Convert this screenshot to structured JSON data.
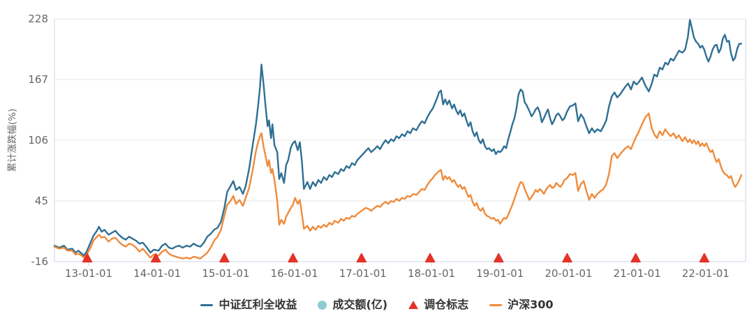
{
  "colors": {
    "dividend_line": "#2f6f93",
    "hs300_line": "#ef8b3b",
    "rebalance_marker": "#e43229",
    "volume_marker": "#8fcbd4",
    "grid_line": "#e6e6e6",
    "axis_line": "#ccd6eb",
    "axis_label": "#666666",
    "legend_text": "#333333",
    "background": "#ffffff"
  },
  "legend": {
    "items": [
      {
        "label": "中证红利全收益",
        "marker": "line",
        "color": "#2f6f93"
      },
      {
        "label": "成交额(亿)",
        "marker": "circle",
        "color": "#8fcbd4"
      },
      {
        "label": "调仓标志",
        "marker": "triangle",
        "color": "#e43229"
      },
      {
        "label": "沪深300",
        "marker": "line",
        "color": "#ef8b3b"
      }
    ]
  },
  "chart_data": {
    "type": "line",
    "title": "",
    "xlabel": "",
    "ylabel": "累计涨跌幅(%)",
    "grid": true,
    "legend_position": "bottom",
    "x_unit": "decimal_year",
    "xlim": [
      2012.5,
      2022.57
    ],
    "ylim": [
      -16,
      228
    ],
    "y_ticks": [
      228,
      167,
      106,
      45,
      -16
    ],
    "x_ticks": [
      {
        "pos": 2013,
        "label": "13-01-01"
      },
      {
        "pos": 2014,
        "label": "14-01-01"
      },
      {
        "pos": 2015,
        "label": "15-01-01"
      },
      {
        "pos": 2016,
        "label": "16-01-01"
      },
      {
        "pos": 2017,
        "label": "17-01-01"
      },
      {
        "pos": 2018,
        "label": "18-01-01"
      },
      {
        "pos": 2019,
        "label": "19-01-01"
      },
      {
        "pos": 2020,
        "label": "20-01-01"
      },
      {
        "pos": 2021,
        "label": "21-01-01"
      },
      {
        "pos": 2022,
        "label": "22-01-01"
      }
    ],
    "series": [
      {
        "name": "中证红利全收益",
        "color": "#2f6f93",
        "column": 1
      },
      {
        "name": "沪深300",
        "color": "#ef8b3b",
        "column": 2
      }
    ],
    "hidden_series": [
      {
        "name": "成交额(亿)",
        "color": "#8fcbd4",
        "note": "legend entry only, no visible data in plot"
      }
    ],
    "rebalance_markers": {
      "name": "调仓标志",
      "color": "#e43229",
      "x_positions": [
        2013,
        2014,
        2015,
        2016,
        2017,
        2018,
        2019,
        2020,
        2021,
        2022
      ],
      "y": -16
    },
    "columns": [
      "decimal_year",
      "中证红利全收益(%)",
      "沪深300(%)"
    ],
    "rows": [
      [
        2012.5,
        0,
        -1
      ],
      [
        2012.57,
        -2,
        -3
      ],
      [
        2012.64,
        0,
        -2
      ],
      [
        2012.69,
        -4,
        -5
      ],
      [
        2012.76,
        -3,
        -5
      ],
      [
        2012.81,
        -7,
        -9
      ],
      [
        2012.85,
        -5,
        -8
      ],
      [
        2012.9,
        -8,
        -10
      ],
      [
        2012.93,
        -10,
        -12
      ],
      [
        2012.97,
        -6,
        -9
      ],
      [
        2013.02,
        2,
        -3
      ],
      [
        2013.07,
        10,
        5
      ],
      [
        2013.12,
        15,
        9
      ],
      [
        2013.15,
        19,
        11
      ],
      [
        2013.19,
        14,
        8
      ],
      [
        2013.23,
        16,
        9
      ],
      [
        2013.29,
        11,
        4
      ],
      [
        2013.34,
        13,
        7
      ],
      [
        2013.39,
        15,
        8
      ],
      [
        2013.44,
        11,
        4
      ],
      [
        2013.49,
        8,
        1
      ],
      [
        2013.54,
        6,
        -1
      ],
      [
        2013.59,
        9,
        2
      ],
      [
        2013.64,
        7,
        1
      ],
      [
        2013.69,
        5,
        -2
      ],
      [
        2013.74,
        2,
        -6
      ],
      [
        2013.79,
        3,
        -3
      ],
      [
        2013.85,
        -2,
        -8
      ],
      [
        2013.9,
        -7,
        -12
      ],
      [
        2013.95,
        -4,
        -9
      ],
      [
        2014.02,
        -5,
        -10
      ],
      [
        2014.07,
        0,
        -6
      ],
      [
        2014.12,
        2,
        -4
      ],
      [
        2014.17,
        -2,
        -8
      ],
      [
        2014.22,
        -3,
        -10
      ],
      [
        2014.27,
        -1,
        -11
      ],
      [
        2014.32,
        0,
        -12
      ],
      [
        2014.37,
        -2,
        -13
      ],
      [
        2014.43,
        0,
        -12
      ],
      [
        2014.48,
        -1,
        -13
      ],
      [
        2014.53,
        2,
        -11
      ],
      [
        2014.58,
        0,
        -12
      ],
      [
        2014.63,
        -1,
        -13
      ],
      [
        2014.68,
        3,
        -10
      ],
      [
        2014.73,
        9,
        -7
      ],
      [
        2014.78,
        12,
        -2
      ],
      [
        2014.83,
        16,
        5
      ],
      [
        2014.88,
        18,
        9
      ],
      [
        2014.93,
        24,
        16
      ],
      [
        2014.98,
        38,
        30
      ],
      [
        2015.02,
        54,
        41
      ],
      [
        2015.07,
        60,
        45
      ],
      [
        2015.11,
        65,
        50
      ],
      [
        2015.15,
        56,
        42
      ],
      [
        2015.2,
        59,
        46
      ],
      [
        2015.25,
        52,
        40
      ],
      [
        2015.29,
        60,
        48
      ],
      [
        2015.34,
        77,
        58
      ],
      [
        2015.39,
        100,
        75
      ],
      [
        2015.44,
        122,
        95
      ],
      [
        2015.47,
        140,
        104
      ],
      [
        2015.5,
        160,
        110
      ],
      [
        2015.52,
        182,
        113
      ],
      [
        2015.55,
        163,
        100
      ],
      [
        2015.58,
        140,
        90
      ],
      [
        2015.61,
        120,
        80
      ],
      [
        2015.63,
        126,
        86
      ],
      [
        2015.66,
        108,
        73
      ],
      [
        2015.68,
        122,
        77
      ],
      [
        2015.71,
        101,
        66
      ],
      [
        2015.75,
        94,
        45
      ],
      [
        2015.78,
        67,
        21
      ],
      [
        2015.81,
        73,
        26
      ],
      [
        2015.85,
        63,
        22
      ],
      [
        2015.88,
        81,
        29
      ],
      [
        2015.91,
        86,
        33
      ],
      [
        2015.95,
        99,
        38
      ],
      [
        2015.98,
        103,
        41
      ],
      [
        2016.01,
        105,
        48
      ],
      [
        2016.05,
        96,
        42
      ],
      [
        2016.08,
        104,
        46
      ],
      [
        2016.11,
        85,
        32
      ],
      [
        2016.14,
        57,
        17
      ],
      [
        2016.19,
        64,
        20
      ],
      [
        2016.23,
        57,
        15
      ],
      [
        2016.27,
        64,
        19
      ],
      [
        2016.31,
        60,
        16
      ],
      [
        2016.35,
        66,
        20
      ],
      [
        2016.39,
        63,
        18
      ],
      [
        2016.43,
        69,
        21
      ],
      [
        2016.47,
        66,
        19
      ],
      [
        2016.51,
        71,
        23
      ],
      [
        2016.55,
        69,
        21
      ],
      [
        2016.59,
        74,
        25
      ],
      [
        2016.64,
        72,
        23
      ],
      [
        2016.68,
        77,
        27
      ],
      [
        2016.72,
        75,
        25
      ],
      [
        2016.76,
        80,
        28
      ],
      [
        2016.8,
        78,
        27
      ],
      [
        2016.84,
        83,
        30
      ],
      [
        2016.88,
        81,
        29
      ],
      [
        2016.92,
        86,
        32
      ],
      [
        2016.96,
        89,
        34
      ],
      [
        2017.0,
        92,
        36
      ],
      [
        2017.04,
        95,
        38
      ],
      [
        2017.08,
        98,
        37
      ],
      [
        2017.12,
        94,
        35
      ],
      [
        2017.17,
        97,
        38
      ],
      [
        2017.21,
        100,
        40
      ],
      [
        2017.25,
        97,
        39
      ],
      [
        2017.29,
        102,
        42
      ],
      [
        2017.33,
        106,
        44
      ],
      [
        2017.37,
        103,
        42
      ],
      [
        2017.41,
        107,
        45
      ],
      [
        2017.45,
        105,
        44
      ],
      [
        2017.49,
        110,
        47
      ],
      [
        2017.53,
        108,
        45
      ],
      [
        2017.57,
        112,
        48
      ],
      [
        2017.61,
        110,
        47
      ],
      [
        2017.65,
        115,
        50
      ],
      [
        2017.69,
        113,
        49
      ],
      [
        2017.73,
        118,
        52
      ],
      [
        2017.78,
        116,
        51
      ],
      [
        2017.82,
        121,
        54
      ],
      [
        2017.86,
        125,
        57
      ],
      [
        2017.9,
        123,
        56
      ],
      [
        2017.94,
        129,
        61
      ],
      [
        2017.98,
        134,
        65
      ],
      [
        2018.02,
        138,
        68
      ],
      [
        2018.05,
        143,
        71
      ],
      [
        2018.08,
        148,
        73
      ],
      [
        2018.11,
        154,
        75
      ],
      [
        2018.14,
        156,
        76
      ],
      [
        2018.17,
        142,
        66
      ],
      [
        2018.2,
        147,
        70
      ],
      [
        2018.23,
        142,
        67
      ],
      [
        2018.26,
        146,
        69
      ],
      [
        2018.3,
        138,
        64
      ],
      [
        2018.33,
        142,
        66
      ],
      [
        2018.36,
        136,
        62
      ],
      [
        2018.39,
        132,
        59
      ],
      [
        2018.42,
        136,
        61
      ],
      [
        2018.45,
        130,
        57
      ],
      [
        2018.48,
        133,
        59
      ],
      [
        2018.51,
        126,
        54
      ],
      [
        2018.54,
        120,
        49
      ],
      [
        2018.57,
        124,
        51
      ],
      [
        2018.6,
        115,
        44
      ],
      [
        2018.63,
        110,
        40
      ],
      [
        2018.66,
        114,
        43
      ],
      [
        2018.69,
        106,
        37
      ],
      [
        2018.72,
        103,
        35
      ],
      [
        2018.75,
        107,
        38
      ],
      [
        2018.78,
        100,
        32
      ],
      [
        2018.81,
        97,
        30
      ],
      [
        2018.84,
        98,
        29
      ],
      [
        2018.88,
        95,
        27
      ],
      [
        2018.91,
        97,
        28
      ],
      [
        2018.94,
        92,
        25
      ],
      [
        2018.97,
        95,
        26
      ],
      [
        2019.0,
        94,
        22
      ],
      [
        2019.03,
        96,
        25
      ],
      [
        2019.06,
        100,
        28
      ],
      [
        2019.09,
        98,
        27
      ],
      [
        2019.12,
        107,
        31
      ],
      [
        2019.15,
        114,
        36
      ],
      [
        2019.18,
        122,
        41
      ],
      [
        2019.21,
        128,
        47
      ],
      [
        2019.24,
        138,
        53
      ],
      [
        2019.27,
        152,
        59
      ],
      [
        2019.3,
        157,
        64
      ],
      [
        2019.33,
        155,
        63
      ],
      [
        2019.36,
        144,
        57
      ],
      [
        2019.39,
        141,
        52
      ],
      [
        2019.43,
        135,
        46
      ],
      [
        2019.46,
        130,
        49
      ],
      [
        2019.49,
        133,
        52
      ],
      [
        2019.52,
        137,
        56
      ],
      [
        2019.55,
        139,
        54
      ],
      [
        2019.58,
        134,
        57
      ],
      [
        2019.61,
        124,
        55
      ],
      [
        2019.64,
        128,
        52
      ],
      [
        2019.67,
        133,
        56
      ],
      [
        2019.7,
        137,
        59
      ],
      [
        2019.73,
        128,
        61
      ],
      [
        2019.76,
        122,
        58
      ],
      [
        2019.79,
        126,
        59
      ],
      [
        2019.82,
        131,
        63
      ],
      [
        2019.85,
        133,
        61
      ],
      [
        2019.88,
        130,
        59
      ],
      [
        2019.91,
        126,
        62
      ],
      [
        2019.94,
        128,
        66
      ],
      [
        2019.98,
        135,
        68
      ],
      [
        2020.02,
        140,
        72
      ],
      [
        2020.06,
        141,
        71
      ],
      [
        2020.1,
        143,
        73
      ],
      [
        2020.14,
        125,
        55
      ],
      [
        2020.18,
        132,
        62
      ],
      [
        2020.22,
        128,
        65
      ],
      [
        2020.26,
        120,
        55
      ],
      [
        2020.3,
        113,
        46
      ],
      [
        2020.34,
        118,
        52
      ],
      [
        2020.38,
        114,
        48
      ],
      [
        2020.42,
        117,
        52
      ],
      [
        2020.47,
        115,
        55
      ],
      [
        2020.51,
        120,
        57
      ],
      [
        2020.55,
        126,
        62
      ],
      [
        2020.59,
        140,
        72
      ],
      [
        2020.63,
        150,
        90
      ],
      [
        2020.67,
        154,
        93
      ],
      [
        2020.71,
        149,
        88
      ],
      [
        2020.75,
        152,
        92
      ],
      [
        2020.79,
        156,
        95
      ],
      [
        2020.83,
        160,
        98
      ],
      [
        2020.87,
        163,
        100
      ],
      [
        2020.91,
        157,
        97
      ],
      [
        2020.95,
        165,
        104
      ],
      [
        2020.99,
        162,
        110
      ],
      [
        2021.02,
        164,
        114
      ],
      [
        2021.07,
        169,
        122
      ],
      [
        2021.12,
        161,
        129
      ],
      [
        2021.17,
        155,
        133
      ],
      [
        2021.21,
        162,
        119
      ],
      [
        2021.25,
        172,
        112
      ],
      [
        2021.29,
        170,
        108
      ],
      [
        2021.33,
        179,
        115
      ],
      [
        2021.37,
        177,
        111
      ],
      [
        2021.41,
        184,
        117
      ],
      [
        2021.45,
        182,
        113
      ],
      [
        2021.49,
        188,
        110
      ],
      [
        2021.53,
        186,
        113
      ],
      [
        2021.57,
        191,
        108
      ],
      [
        2021.61,
        196,
        111
      ],
      [
        2021.66,
        194,
        105
      ],
      [
        2021.7,
        197,
        109
      ],
      [
        2021.74,
        210,
        104
      ],
      [
        2021.77,
        227,
        107
      ],
      [
        2021.8,
        218,
        103
      ],
      [
        2021.83,
        209,
        106
      ],
      [
        2021.86,
        205,
        102
      ],
      [
        2021.89,
        203,
        105
      ],
      [
        2021.92,
        199,
        100
      ],
      [
        2021.95,
        201,
        103
      ],
      [
        2021.98,
        197,
        100
      ],
      [
        2022.01,
        190,
        103
      ],
      [
        2022.04,
        185,
        98
      ],
      [
        2022.07,
        190,
        94
      ],
      [
        2022.1,
        197,
        96
      ],
      [
        2022.13,
        201,
        89
      ],
      [
        2022.16,
        202,
        84
      ],
      [
        2022.19,
        194,
        87
      ],
      [
        2022.22,
        198,
        80
      ],
      [
        2022.25,
        208,
        75
      ],
      [
        2022.28,
        212,
        72
      ],
      [
        2022.31,
        205,
        71
      ],
      [
        2022.34,
        206,
        68
      ],
      [
        2022.37,
        193,
        70
      ],
      [
        2022.4,
        186,
        63
      ],
      [
        2022.43,
        189,
        59
      ],
      [
        2022.46,
        198,
        62
      ],
      [
        2022.49,
        203,
        66
      ],
      [
        2022.52,
        203,
        71
      ]
    ]
  }
}
